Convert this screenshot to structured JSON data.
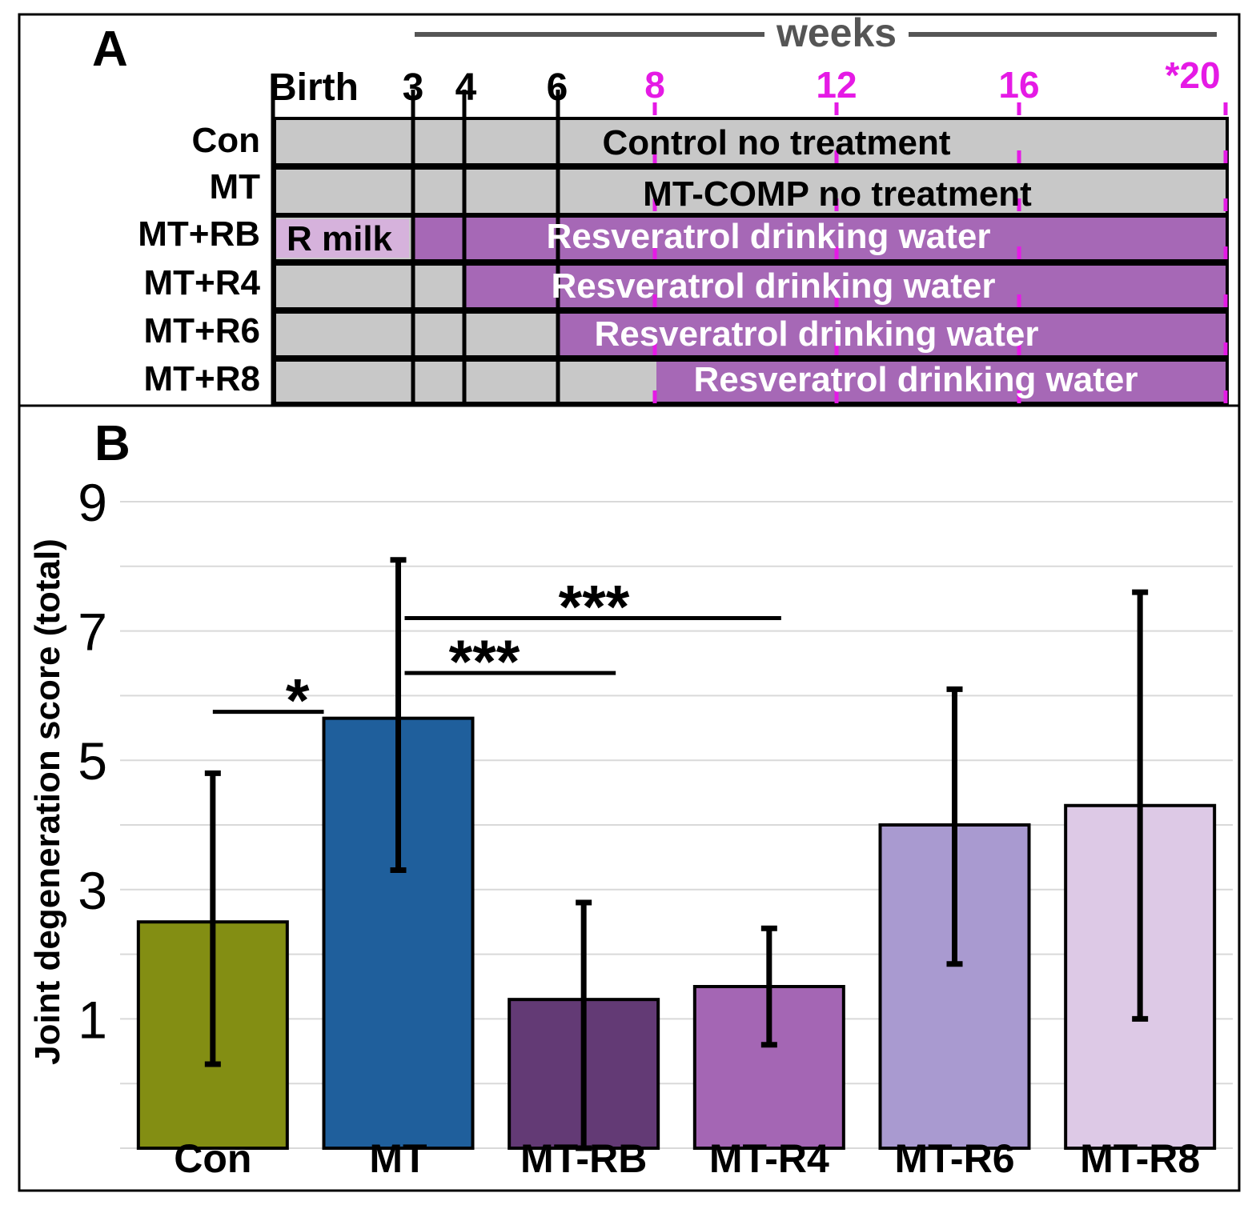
{
  "panel_a": {
    "label": "A",
    "weeks_label": "weeks",
    "time_labels": [
      "Birth",
      "3",
      "4",
      "6",
      "8",
      "12",
      "16",
      "*20"
    ],
    "rows": [
      {
        "name": "Con",
        "bar_text": "Control no treatment"
      },
      {
        "name": "MT",
        "bar_text": "MT-COMP no treatment"
      },
      {
        "name": "MT+RB",
        "milk_text": "R milk",
        "bar_text": "Resveratrol drinking water"
      },
      {
        "name": "MT+R4",
        "bar_text": "Resveratrol drinking water"
      },
      {
        "name": "MT+R6",
        "bar_text": "Resveratrol drinking water"
      },
      {
        "name": "MT+R8",
        "bar_text": "Resveratrol drinking water"
      }
    ],
    "colors": {
      "gray": "#c8c8c8",
      "purple": "#a668b6",
      "milk": "#d6b2dc",
      "magenta": "#e51ae5"
    }
  },
  "chart_data": {
    "type": "bar",
    "panel_label": "B",
    "ylabel": "Joint degeneration score (total)",
    "ylim": [
      -1,
      9
    ],
    "yticks": [
      1,
      3,
      5,
      7,
      9
    ],
    "categories": [
      "Con",
      "MT",
      "MT-RB",
      "MT-R4",
      "MT-R6",
      "MT-R8"
    ],
    "values": [
      2.5,
      5.65,
      1.3,
      1.5,
      4.0,
      4.3
    ],
    "error_low": [
      0.3,
      3.3,
      -1.0,
      0.6,
      1.85,
      1.0
    ],
    "error_high": [
      4.8,
      8.1,
      2.8,
      2.4,
      6.1,
      7.6
    ],
    "colors": [
      "#838e13",
      "#1f5f9c",
      "#633a75",
      "#a466b4",
      "#a99ad0",
      "#ddc9e6"
    ],
    "significance": [
      {
        "label": "*",
        "from": "Con",
        "to": "MT"
      },
      {
        "label": "***",
        "from": "MT",
        "to": "MT-RB"
      },
      {
        "label": "***",
        "from": "MT",
        "to": "MT-R4"
      }
    ]
  }
}
